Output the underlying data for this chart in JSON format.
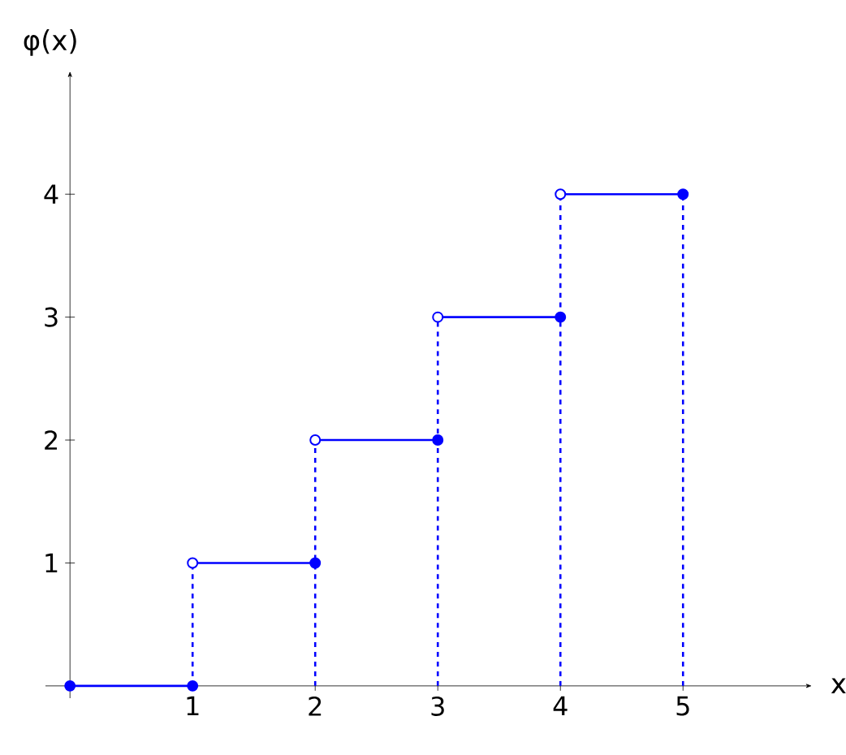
{
  "chart_data": {
    "type": "line",
    "xlabel": "x",
    "ylabel": "φ(x)",
    "xlim": [
      -0.2,
      6.05
    ],
    "ylim": [
      -0.1,
      5.0
    ],
    "xticks": [
      1,
      2,
      3,
      4,
      5
    ],
    "yticks": [
      1,
      2,
      3,
      4
    ],
    "series": [
      {
        "color": "#0000ff",
        "marker": "none",
        "line_style": "dashed",
        "x": [
          1,
          1
        ],
        "values": [
          0,
          1
        ]
      },
      {
        "color": "#0000ff",
        "marker": "none",
        "line_style": "dashed",
        "x": [
          2,
          2
        ],
        "values": [
          0,
          2
        ]
      },
      {
        "color": "#0000ff",
        "marker": "none",
        "line_style": "dashed",
        "x": [
          3,
          3
        ],
        "values": [
          0,
          3
        ]
      },
      {
        "color": "#0000ff",
        "marker": "none",
        "line_style": "dashed",
        "x": [
          4,
          4
        ],
        "values": [
          0,
          4
        ]
      },
      {
        "color": "#0000ff",
        "marker": "none",
        "line_style": "dashed",
        "x": [
          5,
          5
        ],
        "values": [
          0,
          4
        ]
      },
      {
        "color": "#0000ff",
        "marker": "none",
        "line_style": "solid",
        "x": [
          0,
          1
        ],
        "values": [
          0,
          0
        ]
      },
      {
        "color": "#0000ff",
        "marker": "none",
        "line_style": "solid",
        "x": [
          1,
          2
        ],
        "values": [
          1,
          1
        ]
      },
      {
        "color": "#0000ff",
        "marker": "none",
        "line_style": "solid",
        "x": [
          2,
          3
        ],
        "values": [
          2,
          2
        ]
      },
      {
        "color": "#0000ff",
        "marker": "none",
        "line_style": "solid",
        "x": [
          3,
          4
        ],
        "values": [
          3,
          3
        ]
      },
      {
        "color": "#0000ff",
        "marker": "none",
        "line_style": "solid",
        "x": [
          4,
          5
        ],
        "values": [
          4,
          4
        ]
      },
      {
        "type": "scatter",
        "color": "#0000ff",
        "marker": "circle",
        "x": [
          0,
          1,
          2,
          3,
          4,
          5
        ],
        "values": [
          0,
          0,
          1,
          2,
          3,
          4
        ]
      },
      {
        "type": "scatter",
        "color": "#ffffff",
        "marker": "circle",
        "x": [
          1,
          2,
          3,
          4
        ],
        "values": [
          1,
          2,
          3,
          4
        ]
      }
    ]
  }
}
